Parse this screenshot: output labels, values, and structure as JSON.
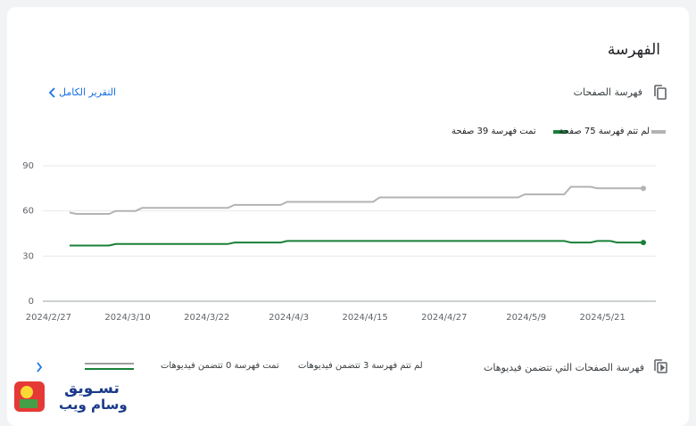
{
  "header": {
    "title": "الفهرسة",
    "section": "فهرسة الصفحات",
    "link": "التقرير الكامل"
  },
  "chart_data": {
    "type": "line",
    "x": [
      "2024-02-27",
      "2024-02-28",
      "2024-03-04",
      "2024-03-05",
      "2024-03-08",
      "2024-03-09",
      "2024-03-22",
      "2024-03-23",
      "2024-03-30",
      "2024-03-31",
      "2024-04-13",
      "2024-04-14",
      "2024-05-05",
      "2024-05-06",
      "2024-05-12",
      "2024-05-13",
      "2024-05-16",
      "2024-05-17",
      "2024-05-19",
      "2024-05-20",
      "2024-05-24"
    ],
    "series": [
      {
        "name": "لم تتم فهرسة 75 صفحة",
        "color": "#b3b3b3",
        "values": [
          59,
          58,
          58,
          60,
          60,
          62,
          62,
          64,
          64,
          66,
          66,
          69,
          69,
          71,
          71,
          76,
          76,
          75,
          75,
          75,
          75
        ]
      },
      {
        "name": "تمت فهرسة 39 صفحة",
        "color": "#188038",
        "values": [
          37,
          37,
          37,
          38,
          38,
          38,
          38,
          39,
          39,
          40,
          40,
          40,
          40,
          40,
          40,
          39,
          39,
          40,
          40,
          39,
          39
        ]
      }
    ],
    "xlim": [
      "2024-02-27",
      "2024-05-24"
    ],
    "xticks": [
      {
        "value": "2024-02-27",
        "label": "2024/2/27"
      },
      {
        "value": "2024-03-10",
        "label": "2024/3/10"
      },
      {
        "value": "2024-03-22",
        "label": "2024/3/22"
      },
      {
        "value": "2024-04-03",
        "label": "2024/4/3"
      },
      {
        "value": "2024-04-15",
        "label": "2024/4/15"
      },
      {
        "value": "2024-04-27",
        "label": "2024/4/27"
      },
      {
        "value": "2024-05-09",
        "label": "2024/5/9"
      },
      {
        "value": "2024-05-21",
        "label": "2024/5/21"
      }
    ],
    "ylim": [
      0,
      90
    ],
    "yticks": [
      0,
      30,
      60,
      90
    ],
    "grid": true
  },
  "video": {
    "section": "فهرسة الصفحات التي تتضمن فيديوهات",
    "not_indexed": "لم تتم فهرسة 3 تتضمن فيديوهات",
    "indexed": "تمت فهرسة 0 تتضمن فيديوهات"
  },
  "watermark": {
    "line1": "تسـويق",
    "line2": "وسام ويب"
  }
}
